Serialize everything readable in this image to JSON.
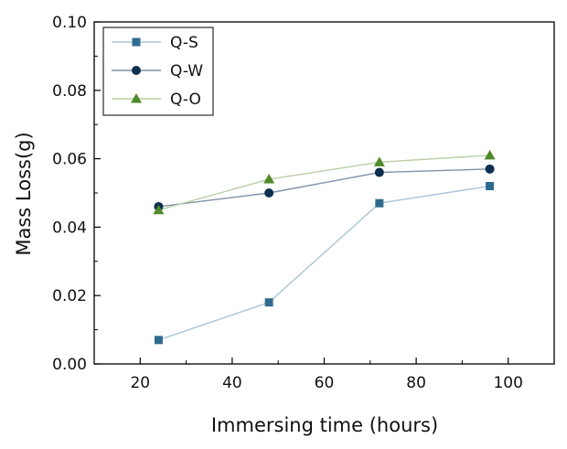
{
  "chart_data": {
    "type": "line",
    "xlabel": "Immersing time (hours)",
    "ylabel": "Mass Loss(g)",
    "xlim": [
      10,
      110
    ],
    "ylim": [
      0,
      0.1
    ],
    "xticks": [
      "20",
      "40",
      "60",
      "80",
      "100"
    ],
    "yticks": [
      "0.00",
      "0.02",
      "0.04",
      "0.06",
      "0.08",
      "0.10"
    ],
    "x": [
      24,
      48,
      72,
      96
    ],
    "series": [
      {
        "name": "Q-S",
        "values": [
          0.007,
          0.018,
          0.047,
          0.052
        ],
        "marker": "square",
        "color": "#2f6b8e",
        "line_color": "#a9c6d8"
      },
      {
        "name": "Q-W",
        "values": [
          0.046,
          0.05,
          0.056,
          0.057
        ],
        "marker": "circle",
        "color": "#0d2f50",
        "line_color": "#7f92a8"
      },
      {
        "name": "Q-O",
        "values": [
          0.045,
          0.054,
          0.059,
          0.061
        ],
        "marker": "triangle",
        "color": "#4f8a2a",
        "line_color": "#b9cfa6"
      }
    ],
    "legend_position": "top-left",
    "grid": false
  }
}
